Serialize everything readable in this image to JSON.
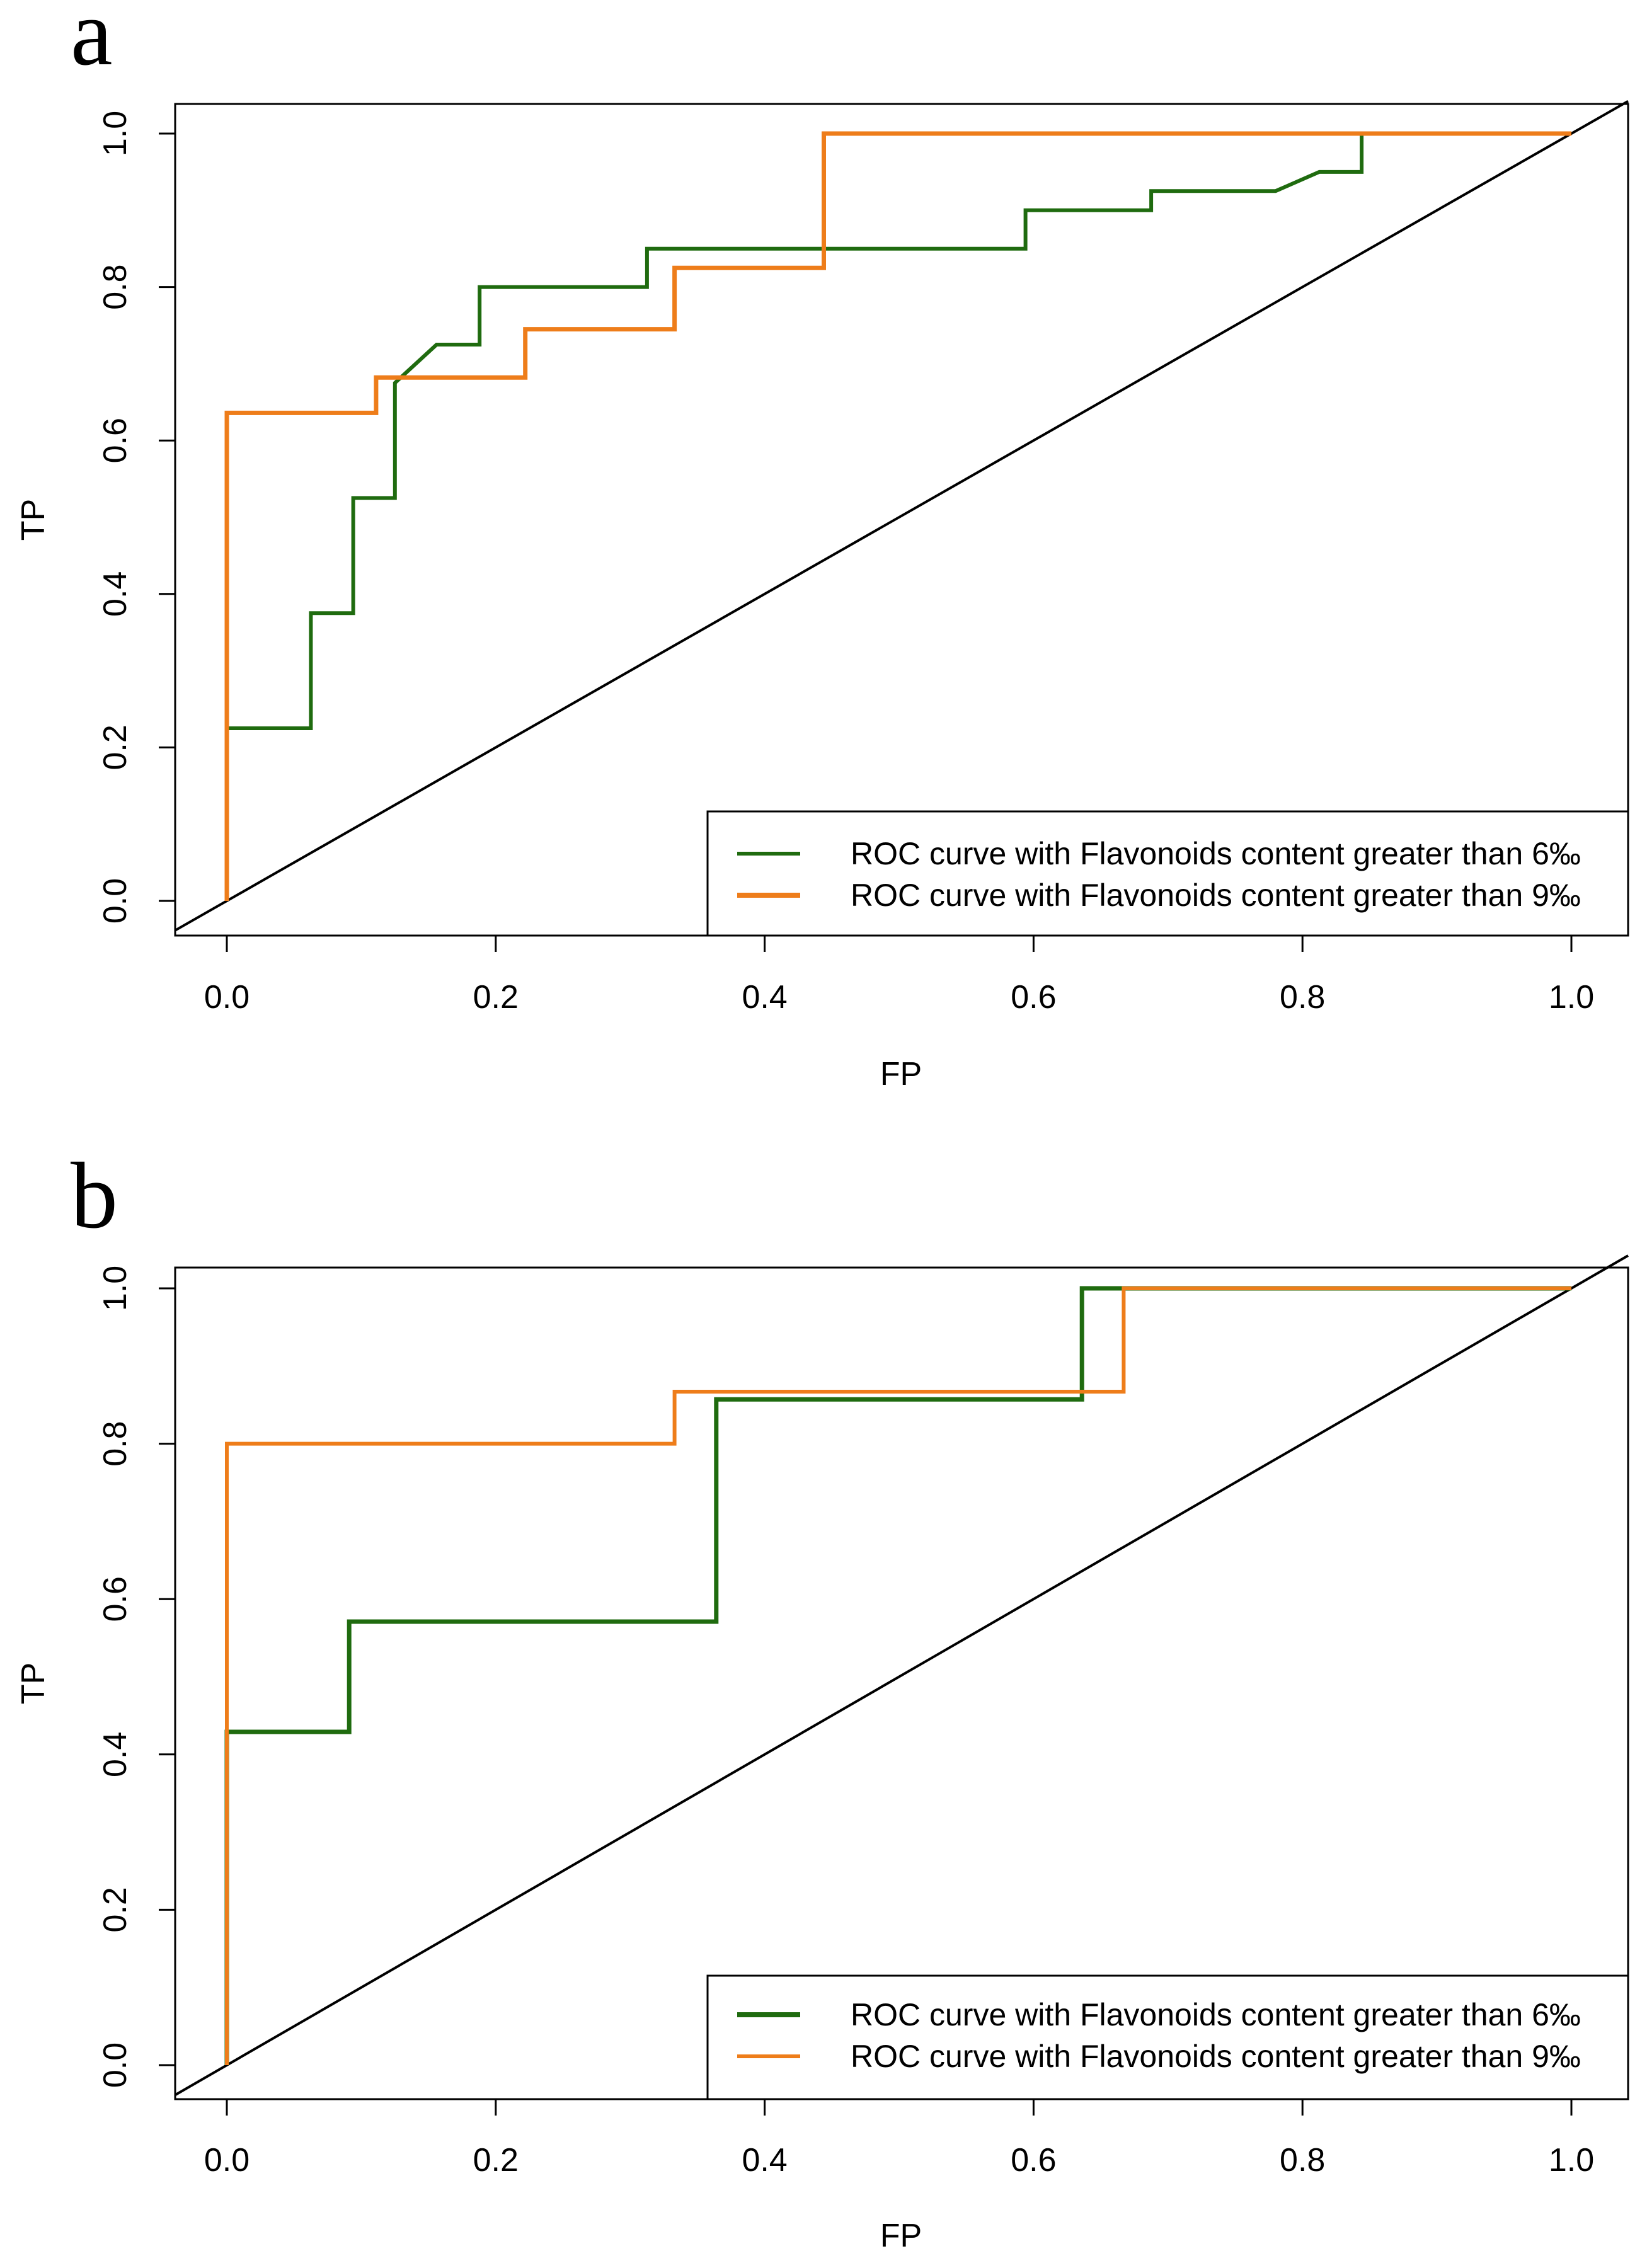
{
  "colors": {
    "green": "#1f6b0f",
    "orange": "#ee7d1a",
    "diagonal": "#000000"
  },
  "chart_data": [
    {
      "panel": "a",
      "type": "line",
      "step": true,
      "xlabel": "FP",
      "ylabel": "TP",
      "xlim": [
        0,
        1
      ],
      "ylim": [
        0,
        1
      ],
      "xticks": [
        "0.0",
        "0.2",
        "0.4",
        "0.6",
        "0.8",
        "1.0"
      ],
      "yticks": [
        "0.0",
        "0.2",
        "0.4",
        "0.6",
        "0.8",
        "1.0"
      ],
      "legend_position": "bottom-right",
      "series": [
        {
          "name": "ROC curve with Flavonoids content greater than 6‰",
          "color": "#1f6b0f",
          "x": [
            0,
            0,
            0.0625,
            0.0625,
            0.094,
            0.094,
            0.125,
            0.125,
            0.156,
            0.188,
            0.188,
            0.3125,
            0.3125,
            0.594,
            0.594,
            0.6875,
            0.6875,
            0.78,
            0.8125,
            0.844,
            0.844,
            1.0
          ],
          "y": [
            0,
            0.225,
            0.225,
            0.375,
            0.375,
            0.525,
            0.525,
            0.675,
            0.725,
            0.725,
            0.8,
            0.8,
            0.85,
            0.85,
            0.9,
            0.9,
            0.925,
            0.925,
            0.95,
            0.95,
            1.0,
            1.0
          ]
        },
        {
          "name": "ROC curve with Flavonoids content greater than 9‰",
          "color": "#ee7d1a",
          "x": [
            0,
            0,
            0.111,
            0.111,
            0.222,
            0.222,
            0.333,
            0.333,
            0.444,
            0.444,
            1.0
          ],
          "y": [
            0,
            0.636,
            0.636,
            0.682,
            0.682,
            0.745,
            0.745,
            0.825,
            0.825,
            1.0,
            1.0
          ]
        }
      ]
    },
    {
      "panel": "b",
      "type": "line",
      "step": true,
      "xlabel": "FP",
      "ylabel": "TP",
      "xlim": [
        0,
        1
      ],
      "ylim": [
        0,
        1
      ],
      "xticks": [
        "0.0",
        "0.2",
        "0.4",
        "0.6",
        "0.8",
        "1.0"
      ],
      "yticks": [
        "0.0",
        "0.2",
        "0.4",
        "0.6",
        "0.8",
        "1.0"
      ],
      "legend_position": "bottom-right",
      "series": [
        {
          "name": "ROC curve with Flavonoids content greater than 6‰",
          "color": "#1f6b0f",
          "x": [
            0,
            0,
            0.091,
            0.091,
            0.364,
            0.364,
            0.636,
            0.636,
            1.0
          ],
          "y": [
            0,
            0.429,
            0.429,
            0.571,
            0.571,
            0.857,
            0.857,
            1.0,
            1.0
          ]
        },
        {
          "name": "ROC curve with Flavonoids content greater than 9‰",
          "color": "#ee7d1a",
          "x": [
            0,
            0,
            0.333,
            0.333,
            0.667,
            0.667,
            1.0
          ],
          "y": [
            0,
            0.8,
            0.8,
            0.867,
            0.867,
            1.0,
            1.0
          ]
        }
      ]
    }
  ]
}
